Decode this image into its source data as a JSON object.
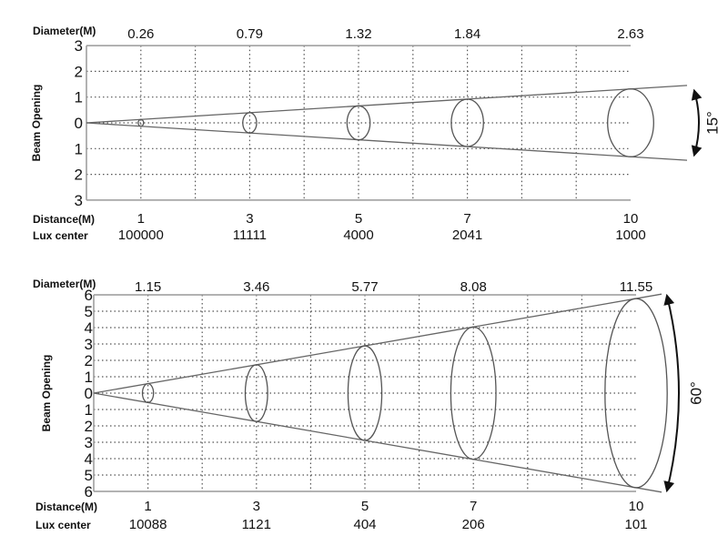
{
  "chart_data": [
    {
      "type": "diagram",
      "beam_angle_label": "15°",
      "beam_angle_deg": 15,
      "y_axis_label": "Beam Opening",
      "y_tick_labels": [
        "3",
        "2",
        "1",
        "0",
        "1",
        "2",
        "3"
      ],
      "y_range": [
        -3,
        3
      ],
      "x_range": [
        0,
        10
      ],
      "diameter_label": "Diameter(M)",
      "distance_label": "Distance(M)",
      "lux_label": "Lux center",
      "distances": [
        "1",
        "3",
        "5",
        "7",
        "10"
      ],
      "diameters": [
        "0.26",
        "0.79",
        "1.32",
        "1.84",
        "2.63"
      ],
      "lux": [
        "100000",
        "11111",
        "4000",
        "2041",
        "1000"
      ],
      "grid": true
    },
    {
      "type": "diagram",
      "beam_angle_label": "60°",
      "beam_angle_deg": 60,
      "y_axis_label": "Beam Opening",
      "y_tick_labels": [
        "6",
        "5",
        "4",
        "3",
        "2",
        "1",
        "0",
        "1",
        "2",
        "3",
        "4",
        "5",
        "6"
      ],
      "y_range": [
        -6,
        6
      ],
      "x_range": [
        0,
        10
      ],
      "diameter_label": "Diameter(M)",
      "distance_label": "Distance(M)",
      "lux_label": "Lux center",
      "distances": [
        "1",
        "3",
        "5",
        "7",
        "10"
      ],
      "diameters": [
        "1.15",
        "3.46",
        "5.77",
        "8.08",
        "11.55"
      ],
      "lux": [
        "10088",
        "1121",
        "404",
        "206",
        "101"
      ],
      "grid": true
    }
  ]
}
